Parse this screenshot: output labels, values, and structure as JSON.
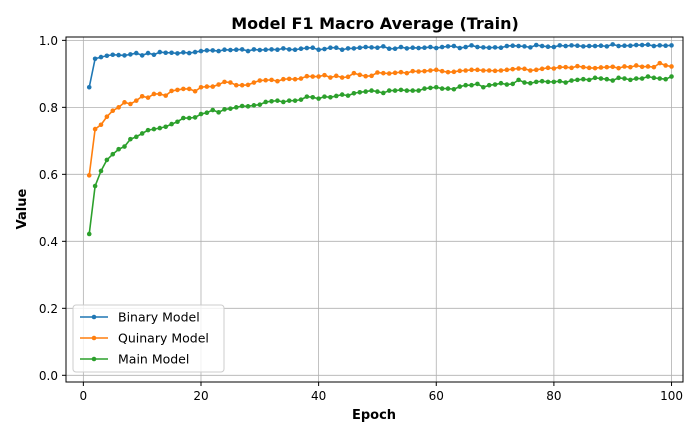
{
  "chart_data": {
    "type": "line",
    "title": "Model F1 Macro Average (Train)",
    "xlabel": "Epoch",
    "ylabel": "Value",
    "xlim": [
      -2.95,
      101.95
    ],
    "ylim": [
      -0.02,
      1.01
    ],
    "xticks": [
      0,
      20,
      40,
      60,
      80,
      100
    ],
    "xtick_labels": [
      "0",
      "20",
      "40",
      "60",
      "80",
      "100"
    ],
    "yticks": [
      0.0,
      0.2,
      0.4,
      0.6,
      0.8,
      1.0
    ],
    "ytick_labels": [
      "0.0",
      "0.2",
      "0.4",
      "0.6",
      "0.8",
      "1.0"
    ],
    "grid": true,
    "legend_position": "lower-left",
    "x": [
      1,
      2,
      3,
      4,
      5,
      6,
      7,
      8,
      9,
      10,
      11,
      12,
      13,
      14,
      15,
      16,
      17,
      18,
      19,
      20,
      21,
      22,
      23,
      24,
      25,
      26,
      27,
      28,
      29,
      30,
      31,
      32,
      33,
      34,
      35,
      36,
      37,
      38,
      39,
      40,
      41,
      42,
      43,
      44,
      45,
      46,
      47,
      48,
      49,
      50,
      51,
      52,
      53,
      54,
      55,
      56,
      57,
      58,
      59,
      60,
      61,
      62,
      63,
      64,
      65,
      66,
      67,
      68,
      69,
      70,
      71,
      72,
      73,
      74,
      75,
      76,
      77,
      78,
      79,
      80,
      81,
      82,
      83,
      84,
      85,
      86,
      87,
      88,
      89,
      90,
      91,
      92,
      93,
      94,
      95,
      96,
      97,
      98,
      99,
      100
    ],
    "series": [
      {
        "name": "Binary Model",
        "color": "#1f77b4",
        "values": [
          0.86,
          0.945,
          0.95,
          0.954,
          0.957,
          0.956,
          0.955,
          0.958,
          0.962,
          0.955,
          0.962,
          0.957,
          0.965,
          0.963,
          0.963,
          0.961,
          0.964,
          0.962,
          0.965,
          0.968,
          0.97,
          0.97,
          0.968,
          0.972,
          0.971,
          0.972,
          0.973,
          0.968,
          0.973,
          0.971,
          0.972,
          0.973,
          0.972,
          0.976,
          0.973,
          0.972,
          0.975,
          0.977,
          0.978,
          0.972,
          0.974,
          0.978,
          0.978,
          0.972,
          0.976,
          0.976,
          0.978,
          0.98,
          0.979,
          0.978,
          0.982,
          0.975,
          0.975,
          0.98,
          0.976,
          0.978,
          0.977,
          0.978,
          0.98,
          0.977,
          0.98,
          0.982,
          0.983,
          0.977,
          0.98,
          0.985,
          0.98,
          0.979,
          0.978,
          0.979,
          0.978,
          0.983,
          0.984,
          0.983,
          0.982,
          0.979,
          0.986,
          0.983,
          0.981,
          0.98,
          0.985,
          0.983,
          0.985,
          0.984,
          0.982,
          0.983,
          0.983,
          0.984,
          0.982,
          0.988,
          0.983,
          0.984,
          0.984,
          0.986,
          0.986,
          0.987,
          0.983,
          0.985,
          0.984,
          0.985
        ]
      },
      {
        "name": "Quinary Model",
        "color": "#ff7f0e",
        "values": [
          0.597,
          0.735,
          0.748,
          0.772,
          0.79,
          0.8,
          0.815,
          0.81,
          0.82,
          0.833,
          0.829,
          0.84,
          0.84,
          0.835,
          0.849,
          0.852,
          0.855,
          0.855,
          0.848,
          0.86,
          0.862,
          0.862,
          0.868,
          0.876,
          0.874,
          0.866,
          0.866,
          0.867,
          0.874,
          0.88,
          0.881,
          0.882,
          0.878,
          0.884,
          0.885,
          0.884,
          0.886,
          0.893,
          0.892,
          0.892,
          0.896,
          0.889,
          0.894,
          0.889,
          0.891,
          0.902,
          0.897,
          0.893,
          0.894,
          0.904,
          0.902,
          0.901,
          0.903,
          0.905,
          0.902,
          0.908,
          0.907,
          0.908,
          0.91,
          0.912,
          0.908,
          0.905,
          0.906,
          0.909,
          0.91,
          0.912,
          0.912,
          0.91,
          0.91,
          0.909,
          0.91,
          0.912,
          0.914,
          0.916,
          0.915,
          0.91,
          0.912,
          0.915,
          0.918,
          0.916,
          0.92,
          0.92,
          0.918,
          0.923,
          0.92,
          0.918,
          0.917,
          0.919,
          0.92,
          0.921,
          0.917,
          0.922,
          0.92,
          0.925,
          0.921,
          0.922,
          0.92,
          0.932,
          0.925,
          0.922
        ]
      },
      {
        "name": "Main Model",
        "color": "#2ca02c",
        "values": [
          0.422,
          0.565,
          0.61,
          0.643,
          0.66,
          0.675,
          0.683,
          0.705,
          0.712,
          0.722,
          0.732,
          0.735,
          0.738,
          0.742,
          0.75,
          0.757,
          0.768,
          0.768,
          0.77,
          0.78,
          0.784,
          0.792,
          0.785,
          0.794,
          0.796,
          0.8,
          0.804,
          0.803,
          0.806,
          0.808,
          0.816,
          0.818,
          0.82,
          0.816,
          0.82,
          0.82,
          0.823,
          0.832,
          0.83,
          0.826,
          0.832,
          0.83,
          0.834,
          0.838,
          0.835,
          0.842,
          0.845,
          0.847,
          0.85,
          0.847,
          0.843,
          0.85,
          0.85,
          0.852,
          0.85,
          0.85,
          0.85,
          0.856,
          0.858,
          0.86,
          0.856,
          0.856,
          0.854,
          0.862,
          0.866,
          0.866,
          0.87,
          0.86,
          0.866,
          0.868,
          0.872,
          0.868,
          0.87,
          0.882,
          0.874,
          0.872,
          0.876,
          0.878,
          0.876,
          0.876,
          0.878,
          0.874,
          0.88,
          0.882,
          0.884,
          0.882,
          0.888,
          0.886,
          0.884,
          0.88,
          0.888,
          0.886,
          0.882,
          0.886,
          0.886,
          0.892,
          0.888,
          0.886,
          0.884,
          0.892
        ]
      }
    ]
  }
}
